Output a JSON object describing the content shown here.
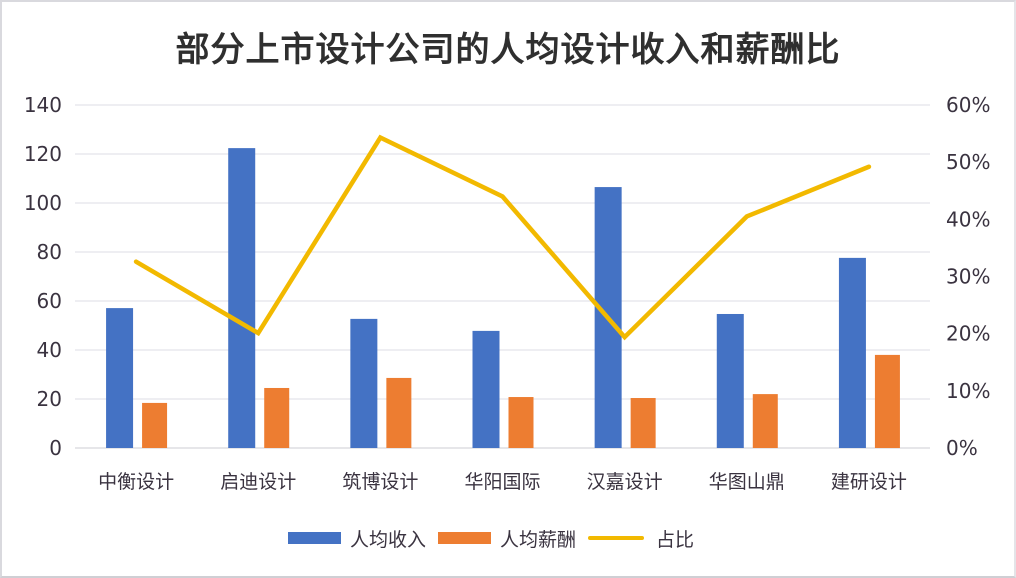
{
  "title": "部分上市设计公司的人均设计收入和薪酬比",
  "legend": [
    {
      "label": "人均收入",
      "color": "#4472C4",
      "kind": "bar"
    },
    {
      "label": "人均薪酬",
      "color": "#ED7D31",
      "kind": "bar"
    },
    {
      "label": "占比",
      "color": "#F2B900",
      "kind": "line"
    }
  ],
  "chart_data": {
    "type": "bar",
    "title": "部分上市设计公司的人均设计收入和薪酬比",
    "categories": [
      "中衡设计",
      "启迪设计",
      "筑博设计",
      "华阳国际",
      "汉嘉设计",
      "华图山鼎",
      "建研设计"
    ],
    "series": [
      {
        "name": "人均收入",
        "type": "bar",
        "axis": "left",
        "color": "#4472C4",
        "values": [
          57.1,
          122.4,
          52.7,
          47.8,
          106.5,
          54.7,
          77.6
        ]
      },
      {
        "name": "人均薪酬",
        "type": "bar",
        "axis": "left",
        "color": "#ED7D31",
        "values": [
          18.4,
          24.5,
          28.6,
          20.8,
          20.4,
          22.0,
          38.0
        ]
      },
      {
        "name": "占比",
        "type": "line",
        "axis": "right",
        "color": "#F2B900",
        "values": [
          0.326,
          0.201,
          0.543,
          0.44,
          0.194,
          0.405,
          0.492
        ]
      }
    ],
    "xlabel": "",
    "ylabel": "",
    "ylim": [
      0,
      140
    ],
    "yticks": [
      "0",
      "20",
      "40",
      "60",
      "80",
      "100",
      "120",
      "140"
    ],
    "y2lim": [
      0,
      0.6
    ],
    "y2ticks": [
      "0%",
      "10%",
      "20%",
      "30%",
      "40%",
      "50%",
      "60%"
    ],
    "grid": true,
    "legend_position": "bottom"
  }
}
